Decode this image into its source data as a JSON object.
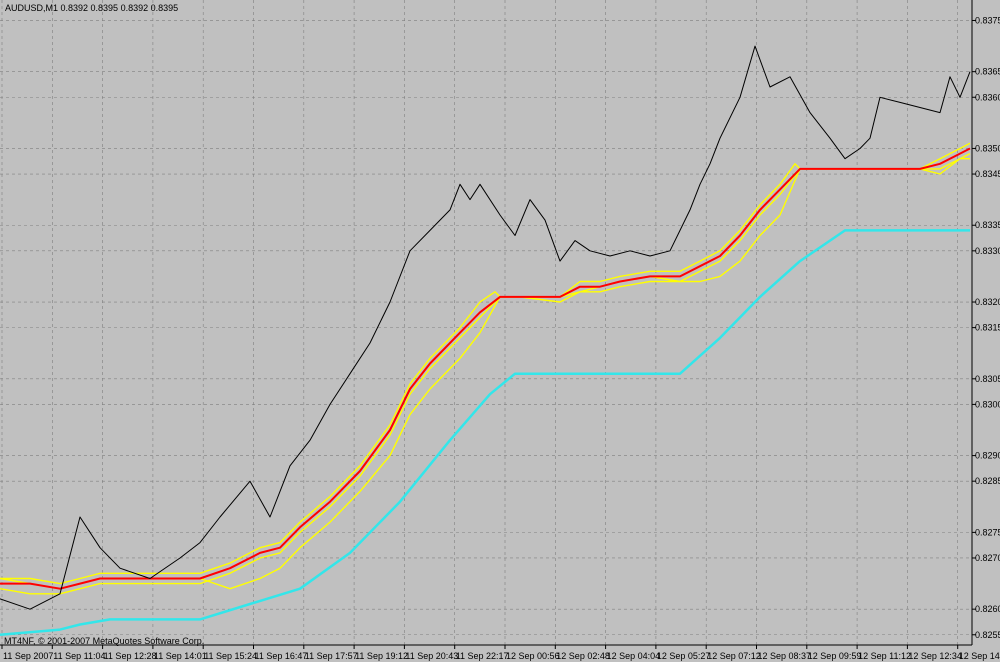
{
  "header": {
    "title": "AUDUSD,M1  0.8392 0.8395 0.8392 0.8395"
  },
  "footer": {
    "copyright": "MT4NF, © 2001-2007 MetaQuotes Software Corp."
  },
  "colors": {
    "background": "#c0c0c0",
    "grid": "#7f7f7f",
    "price": "#000000",
    "ma_red": "#ff0000",
    "envelope_yellow": "#ffff00",
    "trail_cyan": "#33e6ea"
  },
  "chart_data": {
    "type": "line",
    "title": "AUDUSD,M1",
    "grid": true,
    "ylim": [
      0.8253,
      0.8379
    ],
    "y_ticks": [
      "0.8375",
      "0.8365",
      "0.8360",
      "0.8350",
      "0.8345",
      "0.8335",
      "0.8330",
      "0.8320",
      "0.8315",
      "0.8305",
      "0.8300",
      "0.8290",
      "0.8285",
      "0.8275",
      "0.8270",
      "0.8260",
      "0.8255"
    ],
    "x_ticks": [
      "11 Sep 2007",
      "11 Sep 11:04",
      "11 Sep 12:28",
      "11 Sep 14:01",
      "11 Sep 15:24",
      "11 Sep 16:47",
      "11 Sep 17:57",
      "11 Sep 19:12",
      "11 Sep 20:43",
      "11 Sep 22:17",
      "12 Sep 00:56",
      "12 Sep 02:48",
      "12 Sep 04:04",
      "12 Sep 05:27",
      "12 Sep 07:12",
      "12 Sep 08:37",
      "12 Sep 09:59",
      "12 Sep 11:12",
      "12 Sep 12:34",
      "12 Sep 14:04"
    ],
    "series": [
      {
        "color": "#000000",
        "x": [
          0,
          30,
          60,
          80,
          100,
          120,
          150,
          180,
          200,
          220,
          250,
          270,
          290,
          310,
          330,
          350,
          370,
          390,
          410,
          430,
          450,
          460,
          470,
          480,
          500,
          515,
          530,
          545,
          560,
          575,
          590,
          610,
          630,
          650,
          670,
          680,
          690,
          700,
          710,
          720,
          740,
          755,
          770,
          790,
          810,
          830,
          845,
          860,
          870,
          880,
          900,
          920,
          940,
          950,
          960,
          970
        ],
        "y": [
          0.8262,
          0.826,
          0.8263,
          0.8278,
          0.8272,
          0.8268,
          0.8266,
          0.827,
          0.8273,
          0.8278,
          0.8285,
          0.8278,
          0.8288,
          0.8293,
          0.83,
          0.8306,
          0.8312,
          0.832,
          0.833,
          0.8334,
          0.8338,
          0.8343,
          0.834,
          0.8343,
          0.8337,
          0.8333,
          0.834,
          0.8336,
          0.8328,
          0.8332,
          0.833,
          0.8329,
          0.833,
          0.8329,
          0.833,
          0.8334,
          0.8338,
          0.8343,
          0.8347,
          0.8352,
          0.836,
          0.837,
          0.8362,
          0.8364,
          0.8357,
          0.8352,
          0.8348,
          0.835,
          0.8352,
          0.836,
          0.8359,
          0.8358,
          0.8357,
          0.8364,
          0.836,
          0.8365
        ]
      },
      {
        "color": "#ff0000",
        "x": [
          0,
          30,
          60,
          80,
          100,
          120,
          150,
          180,
          200,
          230,
          260,
          280,
          300,
          330,
          360,
          390,
          410,
          430,
          460,
          480,
          500,
          520,
          560,
          580,
          600,
          620,
          650,
          680,
          700,
          720,
          740,
          760,
          780,
          800,
          830,
          860,
          900,
          920,
          940,
          960,
          970
        ],
        "y": [
          0.8265,
          0.8265,
          0.8264,
          0.8265,
          0.8266,
          0.8266,
          0.8266,
          0.8266,
          0.8266,
          0.8268,
          0.8271,
          0.8272,
          0.8276,
          0.8281,
          0.8287,
          0.8295,
          0.8303,
          0.8308,
          0.8314,
          0.8318,
          0.8321,
          0.8321,
          0.8321,
          0.8323,
          0.8323,
          0.8324,
          0.8325,
          0.8325,
          0.8327,
          0.8329,
          0.8333,
          0.8338,
          0.8342,
          0.8346,
          0.8346,
          0.8346,
          0.8346,
          0.8346,
          0.8347,
          0.8349,
          0.835
        ]
      },
      {
        "color": "#ffff00",
        "x": [
          0,
          30,
          60,
          80,
          100,
          120,
          150,
          180,
          200,
          230,
          260,
          280,
          300,
          330,
          360,
          390,
          410,
          430,
          460,
          480,
          495,
          500,
          520,
          560,
          580,
          600,
          620,
          650,
          680,
          700,
          720,
          740,
          760,
          780,
          795,
          800,
          830,
          860,
          900,
          920,
          940,
          960,
          970
        ],
        "y": [
          0.8266,
          0.8266,
          0.8265,
          0.8266,
          0.8267,
          0.8267,
          0.8267,
          0.8267,
          0.8267,
          0.8269,
          0.8272,
          0.8273,
          0.8277,
          0.8282,
          0.8288,
          0.8296,
          0.8304,
          0.8309,
          0.8315,
          0.832,
          0.8322,
          0.8321,
          0.8321,
          0.8321,
          0.8324,
          0.8324,
          0.8325,
          0.8326,
          0.8326,
          0.8328,
          0.833,
          0.8334,
          0.8339,
          0.8343,
          0.8347,
          0.8346,
          0.8346,
          0.8346,
          0.8346,
          0.8346,
          0.8348,
          0.835,
          0.8351
        ]
      },
      {
        "color": "#ffff00",
        "x": [
          0,
          30,
          60,
          80,
          100,
          120,
          150,
          180,
          200,
          230,
          260,
          280,
          300,
          330,
          360,
          390,
          410,
          430,
          460,
          480,
          500,
          520,
          560,
          580,
          600,
          620,
          650,
          680,
          700,
          720,
          740,
          760,
          780,
          800,
          830,
          860,
          900,
          920,
          940,
          960,
          970
        ],
        "y": [
          0.8264,
          0.8263,
          0.8263,
          0.8264,
          0.8265,
          0.8265,
          0.8265,
          0.8265,
          0.8265,
          0.8267,
          0.827,
          0.8271,
          0.8275,
          0.828,
          0.8286,
          0.8294,
          0.8302,
          0.8307,
          0.8313,
          0.8317,
          0.8321,
          0.8321,
          0.8321,
          0.8322,
          0.8322,
          0.8323,
          0.8324,
          0.8324,
          0.8326,
          0.8328,
          0.8332,
          0.8337,
          0.8341,
          0.8346,
          0.8346,
          0.8346,
          0.8346,
          0.8346,
          0.8346,
          0.8348,
          0.8349
        ]
      },
      {
        "color": "#ffff00",
        "x": [
          0,
          30,
          60,
          80,
          100,
          120,
          150,
          180,
          200,
          230,
          260,
          280,
          300,
          330,
          360,
          390,
          410,
          430,
          460,
          480,
          500,
          520,
          560,
          580,
          600,
          620,
          650,
          680,
          700,
          720,
          740,
          760,
          780,
          800,
          830,
          860,
          900,
          920,
          940,
          960,
          970
        ],
        "y": [
          0.8266,
          0.8265,
          0.8264,
          0.8265,
          0.8266,
          0.8266,
          0.8266,
          0.8266,
          0.8266,
          0.8264,
          0.8266,
          0.8268,
          0.8272,
          0.8277,
          0.8283,
          0.829,
          0.8298,
          0.8303,
          0.8309,
          0.8314,
          0.8321,
          0.8321,
          0.832,
          0.8322,
          0.8323,
          0.8324,
          0.8325,
          0.8324,
          0.8324,
          0.8325,
          0.8328,
          0.8333,
          0.8337,
          0.8346,
          0.8346,
          0.8346,
          0.8346,
          0.8346,
          0.8345,
          0.8348,
          0.8348
        ]
      },
      {
        "color": "#33e6ea",
        "x": [
          0,
          60,
          80,
          110,
          200,
          250,
          300,
          350,
          400,
          450,
          490,
          515,
          680,
          720,
          760,
          800,
          845,
          970
        ],
        "y": [
          0.8255,
          0.8256,
          0.8257,
          0.8258,
          0.8258,
          0.8261,
          0.8264,
          0.8271,
          0.8281,
          0.8293,
          0.8302,
          0.8306,
          0.8306,
          0.8313,
          0.8321,
          0.8328,
          0.8334,
          0.8334
        ]
      }
    ]
  }
}
